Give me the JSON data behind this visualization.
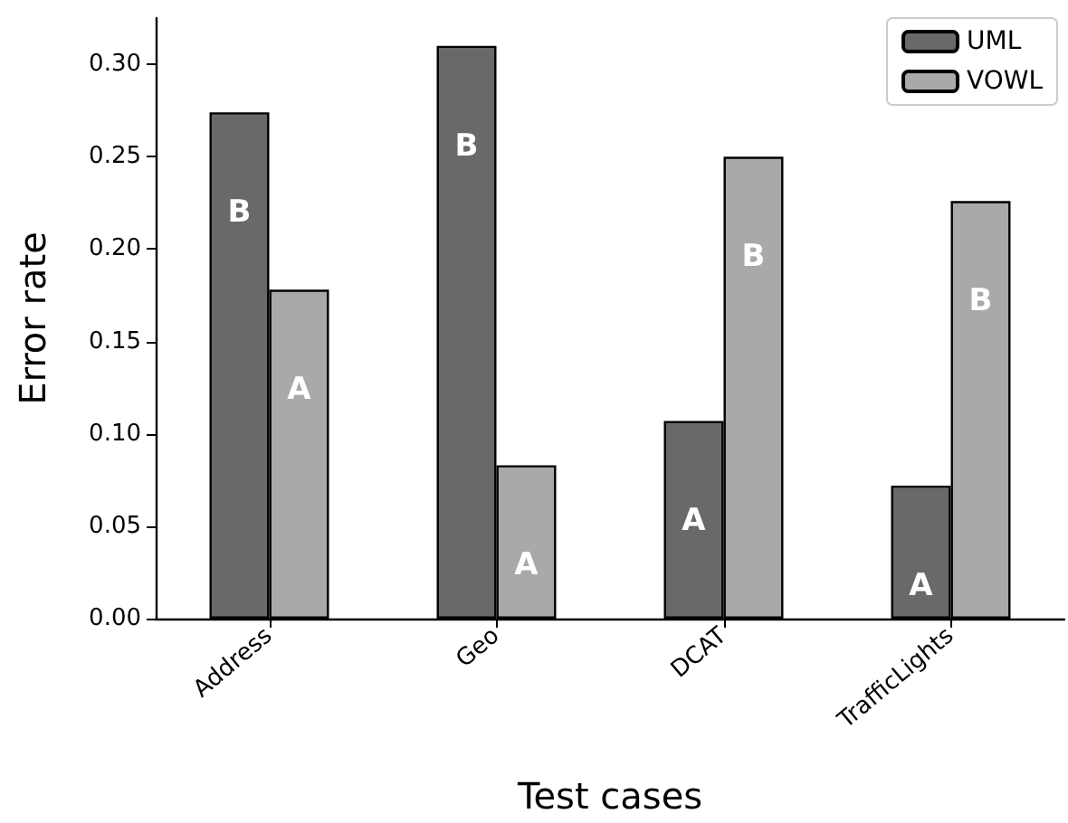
{
  "chart_data": {
    "type": "bar",
    "xlabel": "Test cases",
    "ylabel": "Error rate",
    "categories": [
      "Address",
      "Geo",
      "DCAT",
      "TrafficLights"
    ],
    "series": [
      {
        "name": "UML",
        "color": "#696969",
        "values": [
          0.274,
          0.31,
          0.107,
          0.072
        ],
        "value_labels": [
          "B",
          "B",
          "A",
          "A"
        ]
      },
      {
        "name": "VOWL",
        "color": "#a9a9a9",
        "values": [
          0.178,
          0.083,
          0.25,
          0.226
        ],
        "value_labels": [
          "A",
          "A",
          "B",
          "B"
        ]
      }
    ],
    "ylim": [
      0,
      0.325
    ],
    "yticks": [
      {
        "value": 0,
        "label": "0.00"
      },
      {
        "value": 0.05,
        "label": "0.05"
      },
      {
        "value": 0.1,
        "label": "0.10"
      },
      {
        "value": 0.15,
        "label": "0.15"
      },
      {
        "value": 0.2,
        "label": "0.20"
      },
      {
        "value": 0.25,
        "label": "0.25"
      },
      {
        "value": 0.3,
        "label": "0.30"
      }
    ],
    "grid": false,
    "legend": "top right"
  }
}
